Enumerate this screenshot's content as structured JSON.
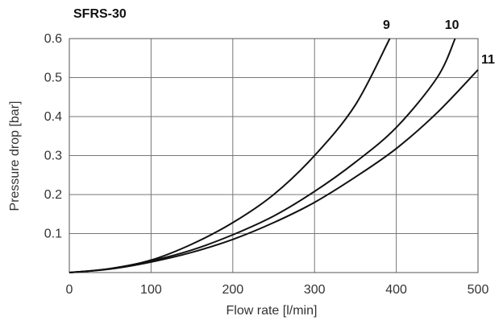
{
  "chart_data": {
    "type": "line",
    "title": "SFRS-30",
    "xlabel": "Flow rate [l/min]",
    "ylabel": "Pressure drop [bar]",
    "xlim": [
      0,
      500
    ],
    "ylim": [
      0,
      0.6
    ],
    "x_ticks": [
      "0",
      "100",
      "200",
      "300",
      "400",
      "500"
    ],
    "y_ticks": [
      "0.1",
      "0.2",
      "0.3",
      "0.4",
      "0.5",
      "0.6"
    ],
    "grid": true,
    "legend": "labels at curve ends",
    "line_color": "#111111",
    "series": [
      {
        "name": "9",
        "x": [
          0,
          50,
          100,
          150,
          200,
          250,
          300,
          350,
          392
        ],
        "y": [
          0,
          0.01,
          0.032,
          0.073,
          0.128,
          0.2,
          0.3,
          0.43,
          0.6
        ]
      },
      {
        "name": "10",
        "x": [
          0,
          50,
          100,
          150,
          200,
          250,
          300,
          350,
          400,
          450,
          472
        ],
        "y": [
          0,
          0.01,
          0.03,
          0.058,
          0.097,
          0.145,
          0.208,
          0.283,
          0.372,
          0.5,
          0.6
        ]
      },
      {
        "name": "11",
        "x": [
          0,
          50,
          100,
          150,
          200,
          250,
          300,
          350,
          400,
          450,
          500
        ],
        "y": [
          0,
          0.009,
          0.027,
          0.052,
          0.085,
          0.128,
          0.18,
          0.245,
          0.318,
          0.41,
          0.52
        ]
      }
    ]
  }
}
